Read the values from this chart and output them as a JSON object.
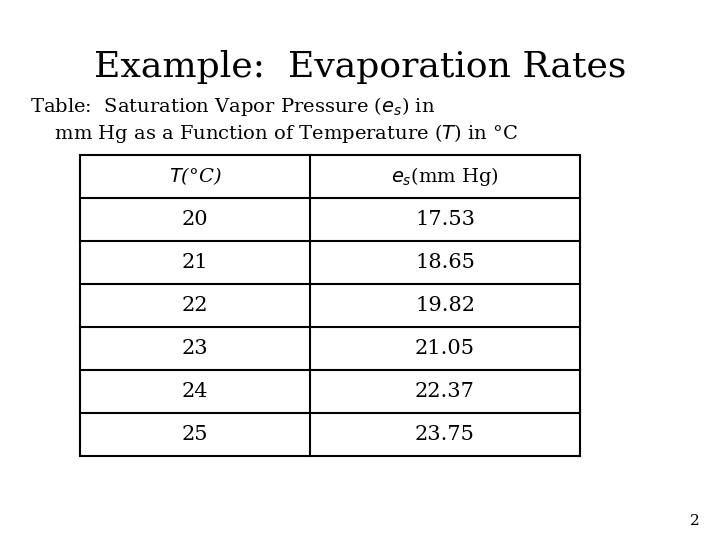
{
  "title": "Example:  Evaporation Rates",
  "subtitle_line1": "Table:  Saturation Vapor Pressure ($e_s$) in",
  "subtitle_line2": "    mm Hg as a Function of Temperature ($T$) in °C",
  "col1_header": "$T$(°C)",
  "col2_header": "$e_s$(mm Hg)",
  "temperatures": [
    "20",
    "21",
    "22",
    "23",
    "24",
    "25"
  ],
  "pressures": [
    "17.53",
    "18.65",
    "19.82",
    "21.05",
    "22.37",
    "23.75"
  ],
  "bg_color": "#ffffff",
  "text_color": "#000000",
  "table_line_color": "#000000",
  "page_number": "2",
  "title_fontsize": 26,
  "subtitle_fontsize": 14,
  "table_header_fontsize": 14,
  "table_data_fontsize": 15
}
